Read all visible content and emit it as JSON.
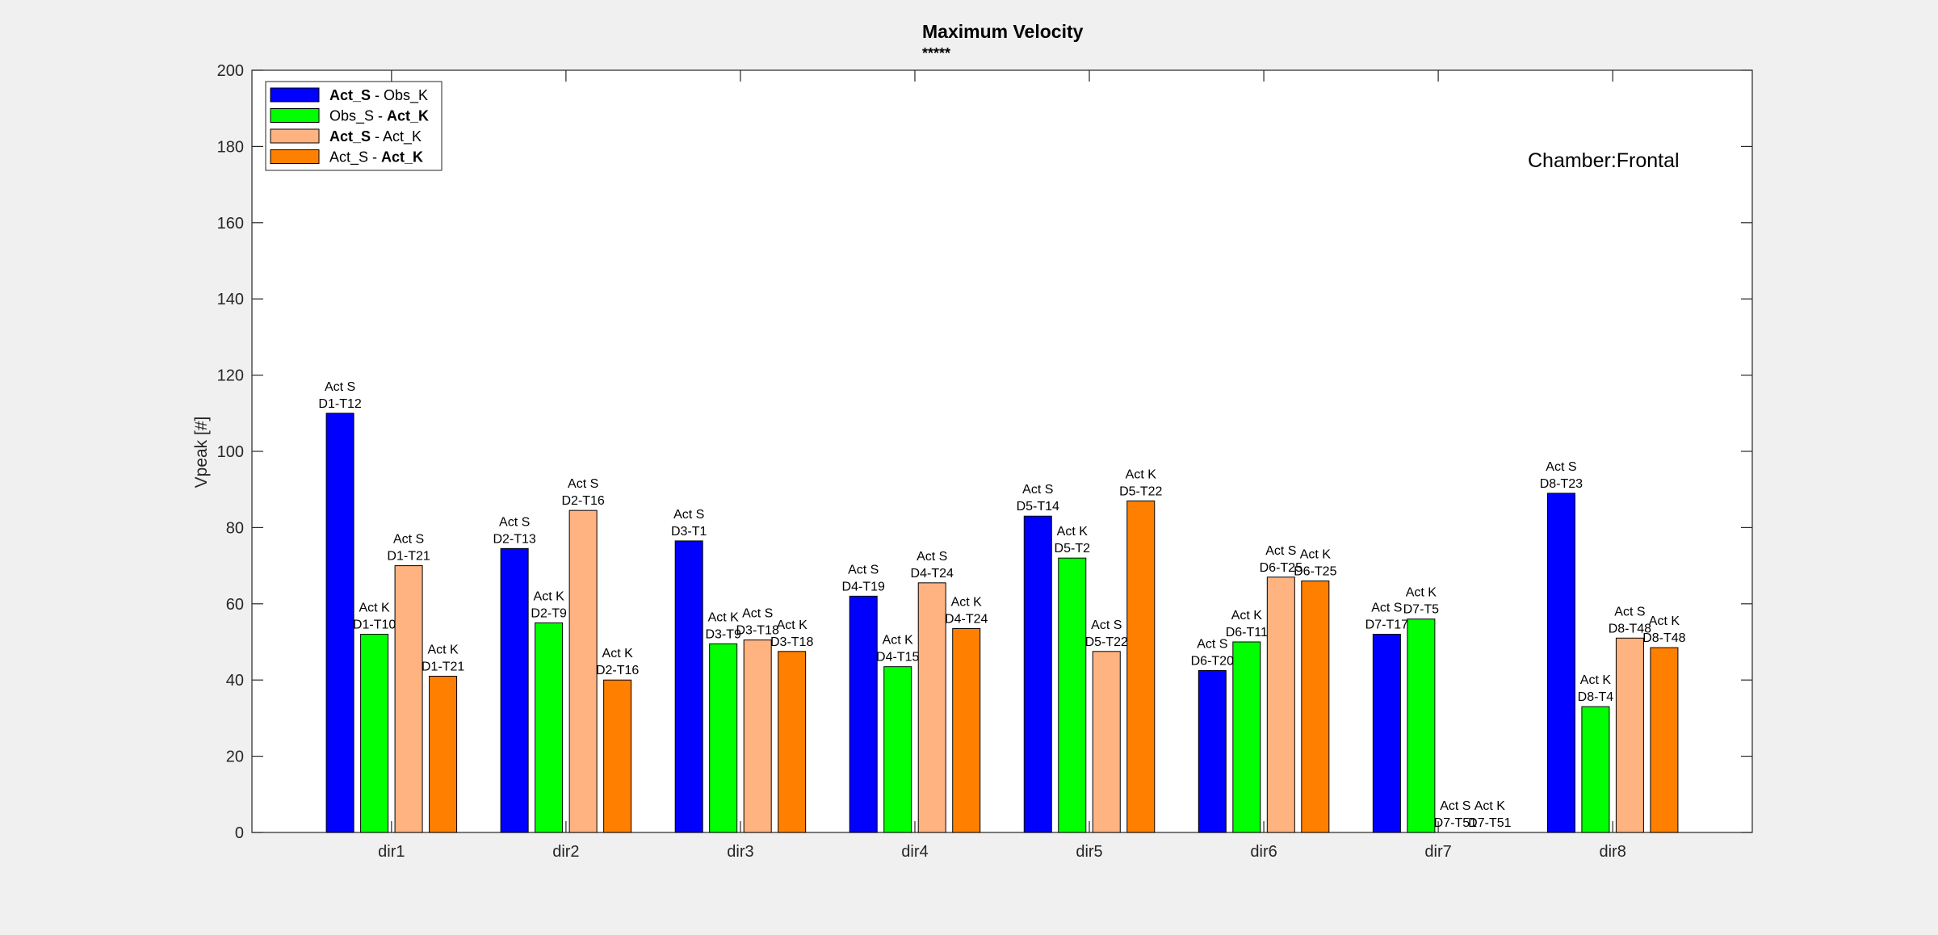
{
  "chart_data": {
    "type": "bar",
    "title": "Maximum Velocity",
    "subtitle": "*****",
    "xlabel": "",
    "ylabel": "Vpeak [#]",
    "ylim": [
      0,
      200
    ],
    "yticks": [
      0,
      20,
      40,
      60,
      80,
      100,
      120,
      140,
      160,
      180,
      200
    ],
    "categories": [
      "dir1",
      "dir2",
      "dir3",
      "dir4",
      "dir5",
      "dir6",
      "dir7",
      "dir8"
    ],
    "annotation": "Chamber:Frontal",
    "legend_position": "top-left",
    "grid": false,
    "series": [
      {
        "name": "Act_S - Obs_K",
        "legend_parts": [
          {
            "text": "Act_S",
            "bold": true
          },
          {
            "text": " - Obs_K",
            "bold": false
          }
        ],
        "color": "#0000ff",
        "values": [
          110,
          74.5,
          76.5,
          62,
          83,
          42.5,
          52,
          89
        ],
        "labels": [
          [
            "Act S",
            "D1-T12"
          ],
          [
            "Act S",
            "D2-T13"
          ],
          [
            "Act S",
            "D3-T1"
          ],
          [
            "Act S",
            "D4-T19"
          ],
          [
            "Act S",
            "D5-T14"
          ],
          [
            "Act S",
            "D6-T20"
          ],
          [
            "Act S",
            "D7-T17"
          ],
          [
            "Act S",
            "D8-T23"
          ]
        ]
      },
      {
        "name": "Obs_S - Act_K",
        "legend_parts": [
          {
            "text": "Obs_S - ",
            "bold": false
          },
          {
            "text": "Act_K",
            "bold": true
          }
        ],
        "color": "#00ff00",
        "values": [
          52,
          55,
          49.5,
          43.5,
          72,
          50,
          56,
          33
        ],
        "labels": [
          [
            "Act K",
            "D1-T10"
          ],
          [
            "Act K",
            "D2-T9"
          ],
          [
            "Act K",
            "D3-T9"
          ],
          [
            "Act K",
            "D4-T15"
          ],
          [
            "Act K",
            "D5-T2"
          ],
          [
            "Act K",
            "D6-T11"
          ],
          [
            "Act K",
            "D7-T5"
          ],
          [
            "Act K",
            "D8-T4"
          ]
        ]
      },
      {
        "name": "Act_S - Act_K",
        "legend_parts": [
          {
            "text": "Act_S",
            "bold": true
          },
          {
            "text": " - Act_K",
            "bold": false
          }
        ],
        "color": "#ffb380",
        "values": [
          70,
          84.5,
          50.5,
          65.5,
          47.5,
          67,
          0,
          51
        ],
        "labels": [
          [
            "Act S",
            "D1-T21"
          ],
          [
            "Act S",
            "D2-T16"
          ],
          [
            "Act S",
            "D3-T18"
          ],
          [
            "Act S",
            "D4-T24"
          ],
          [
            "Act S",
            "D5-T22"
          ],
          [
            "Act S",
            "D6-T25"
          ],
          [
            "Act S",
            "D7-T51"
          ],
          [
            "Act S",
            "D8-T48"
          ]
        ]
      },
      {
        "name": "Act_S - Act_K",
        "legend_parts": [
          {
            "text": "Act_S - ",
            "bold": false
          },
          {
            "text": "Act_K",
            "bold": true
          }
        ],
        "color": "#ff8000",
        "values": [
          41,
          40,
          47.5,
          53.5,
          87,
          66,
          0,
          48.5
        ],
        "labels": [
          [
            "Act K",
            "D1-T21"
          ],
          [
            "Act K",
            "D2-T16"
          ],
          [
            "Act K",
            "D3-T18"
          ],
          [
            "Act K",
            "D4-T24"
          ],
          [
            "Act K",
            "D5-T22"
          ],
          [
            "Act K",
            "D6-T25"
          ],
          [
            "Act K",
            "D7-T51"
          ],
          [
            "Act K",
            "D8-T48"
          ]
        ]
      }
    ]
  }
}
